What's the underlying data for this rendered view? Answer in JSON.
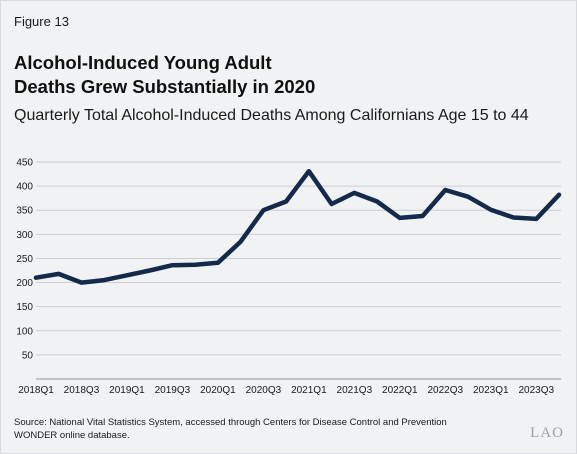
{
  "figure_label": "Figure 13",
  "title_line1": "Alcohol-Induced Young Adult",
  "title_line2": "Deaths Grew Substantially in 2020",
  "subtitle": "Quarterly Total Alcohol-Induced Deaths Among Californians Age 15 to 44",
  "source_line1": "Source: National Vital Statistics System, accessed through Centers for Disease Control and Prevention",
  "source_line2": "WONDER online database.",
  "logo_text": "LAO",
  "colors": {
    "line": "#142a4a",
    "grid": "#c9ced4",
    "background": "#f0f2f4"
  },
  "chart_data": {
    "type": "line",
    "title": "Quarterly Total Alcohol-Induced Deaths Among Californians Age 15 to 44",
    "xlabel": "",
    "ylabel": "",
    "ylim": [
      0,
      450
    ],
    "yticks": [
      50,
      100,
      150,
      200,
      250,
      300,
      350,
      400,
      450
    ],
    "grid": true,
    "x": [
      "2018Q1",
      "2018Q2",
      "2018Q3",
      "2018Q4",
      "2019Q1",
      "2019Q2",
      "2019Q3",
      "2019Q4",
      "2020Q1",
      "2020Q2",
      "2020Q3",
      "2020Q4",
      "2021Q1",
      "2021Q2",
      "2021Q3",
      "2021Q4",
      "2022Q1",
      "2022Q2",
      "2022Q3",
      "2022Q4",
      "2023Q1",
      "2023Q2",
      "2023Q3",
      "2023Q4"
    ],
    "xtick_labels": [
      "2018Q1",
      "2018Q3",
      "2019Q1",
      "2019Q3",
      "2020Q1",
      "2020Q3",
      "2021Q1",
      "2021Q3",
      "2022Q1",
      "2022Q3",
      "2023Q1",
      "2023Q3"
    ],
    "values": [
      210,
      218,
      200,
      205,
      215,
      225,
      236,
      237,
      241,
      285,
      350,
      368,
      431,
      363,
      386,
      368,
      334,
      338,
      392,
      378,
      351,
      335,
      332,
      382
    ]
  }
}
